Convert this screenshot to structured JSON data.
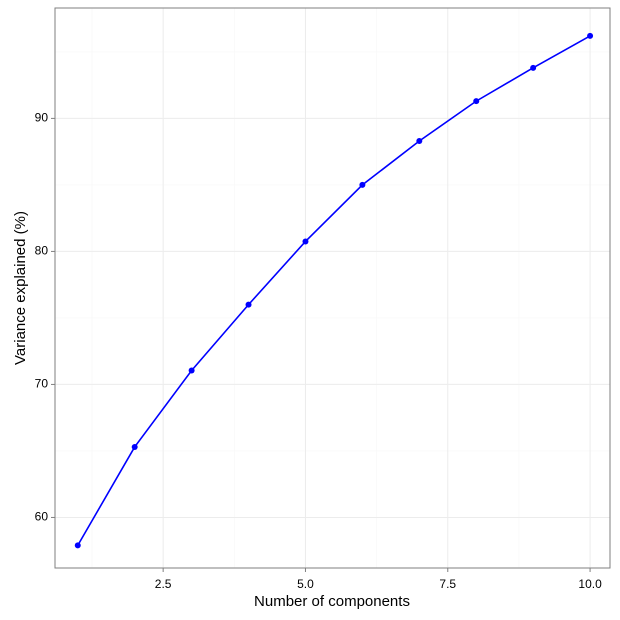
{
  "chart_data": {
    "type": "line",
    "x_label": "Number of components",
    "y_label": "Variance explained (%)",
    "x": [
      1,
      2,
      3,
      4,
      5,
      6,
      7,
      8,
      9,
      10
    ],
    "series": [
      {
        "name": "Variance explained",
        "color": "#0000ff",
        "values": [
          57.9,
          65.3,
          71.05,
          76.0,
          80.75,
          85.0,
          88.3,
          91.3,
          93.8,
          96.2
        ]
      }
    ],
    "xlim": [
      0.6,
      10.35
    ],
    "ylim": [
      56.2,
      98.3
    ],
    "xticks": [
      {
        "value": 2.5,
        "label": "2.5"
      },
      {
        "value": 5,
        "label": "5.0"
      },
      {
        "value": 7.5,
        "label": "7.5"
      },
      {
        "value": 10,
        "label": "10.0"
      }
    ],
    "yticks": [
      60,
      70,
      80,
      90
    ],
    "grid": true
  }
}
